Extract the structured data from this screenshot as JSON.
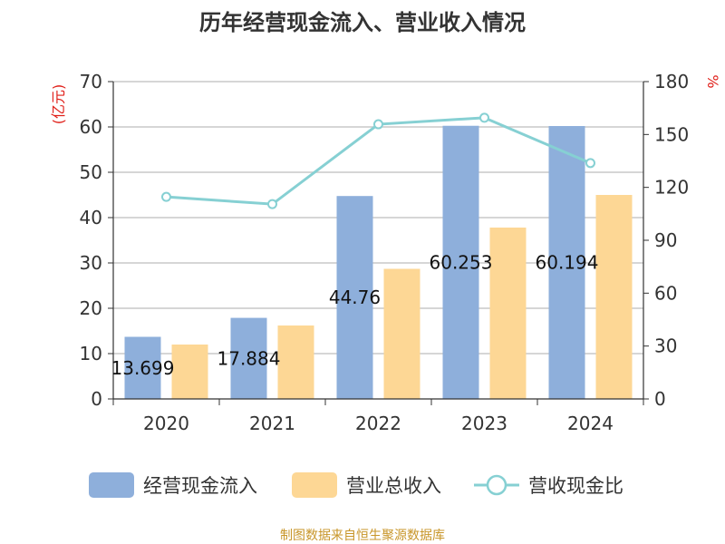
{
  "chart_data": {
    "type": "bar",
    "title": "历年经营现金流入、营业收入情况",
    "categories": [
      "2020",
      "2021",
      "2022",
      "2023",
      "2024"
    ],
    "series": [
      {
        "name": "经营现金流入",
        "axis": "left",
        "type": "bar",
        "color": "#8eafdb",
        "values": [
          13.699,
          17.884,
          44.76,
          60.253,
          60.194
        ]
      },
      {
        "name": "营业总收入",
        "axis": "left",
        "type": "bar",
        "color": "#fdd795",
        "values": [
          12.0,
          16.2,
          28.7,
          37.8,
          45.0
        ]
      },
      {
        "name": "营收现金比",
        "axis": "right",
        "type": "line",
        "color": "#86d0d3",
        "values": [
          114.6,
          110.5,
          155.8,
          159.5,
          133.8
        ]
      }
    ],
    "data_labels": [
      "13.699",
      "17.884",
      "44.76",
      "60.253",
      "60.194"
    ],
    "y_left": {
      "label": "(亿元)",
      "ylim": [
        0,
        70
      ],
      "ticks": [
        "0",
        "10",
        "20",
        "30",
        "40",
        "50",
        "60",
        "70"
      ]
    },
    "y_right": {
      "label": "%",
      "ylim": [
        0,
        180
      ],
      "ticks": [
        "0",
        "30",
        "60",
        "90",
        "120",
        "150",
        "180"
      ]
    },
    "grid": true,
    "legend_position": "bottom",
    "source": "制图数据来自恒生聚源数据库"
  }
}
